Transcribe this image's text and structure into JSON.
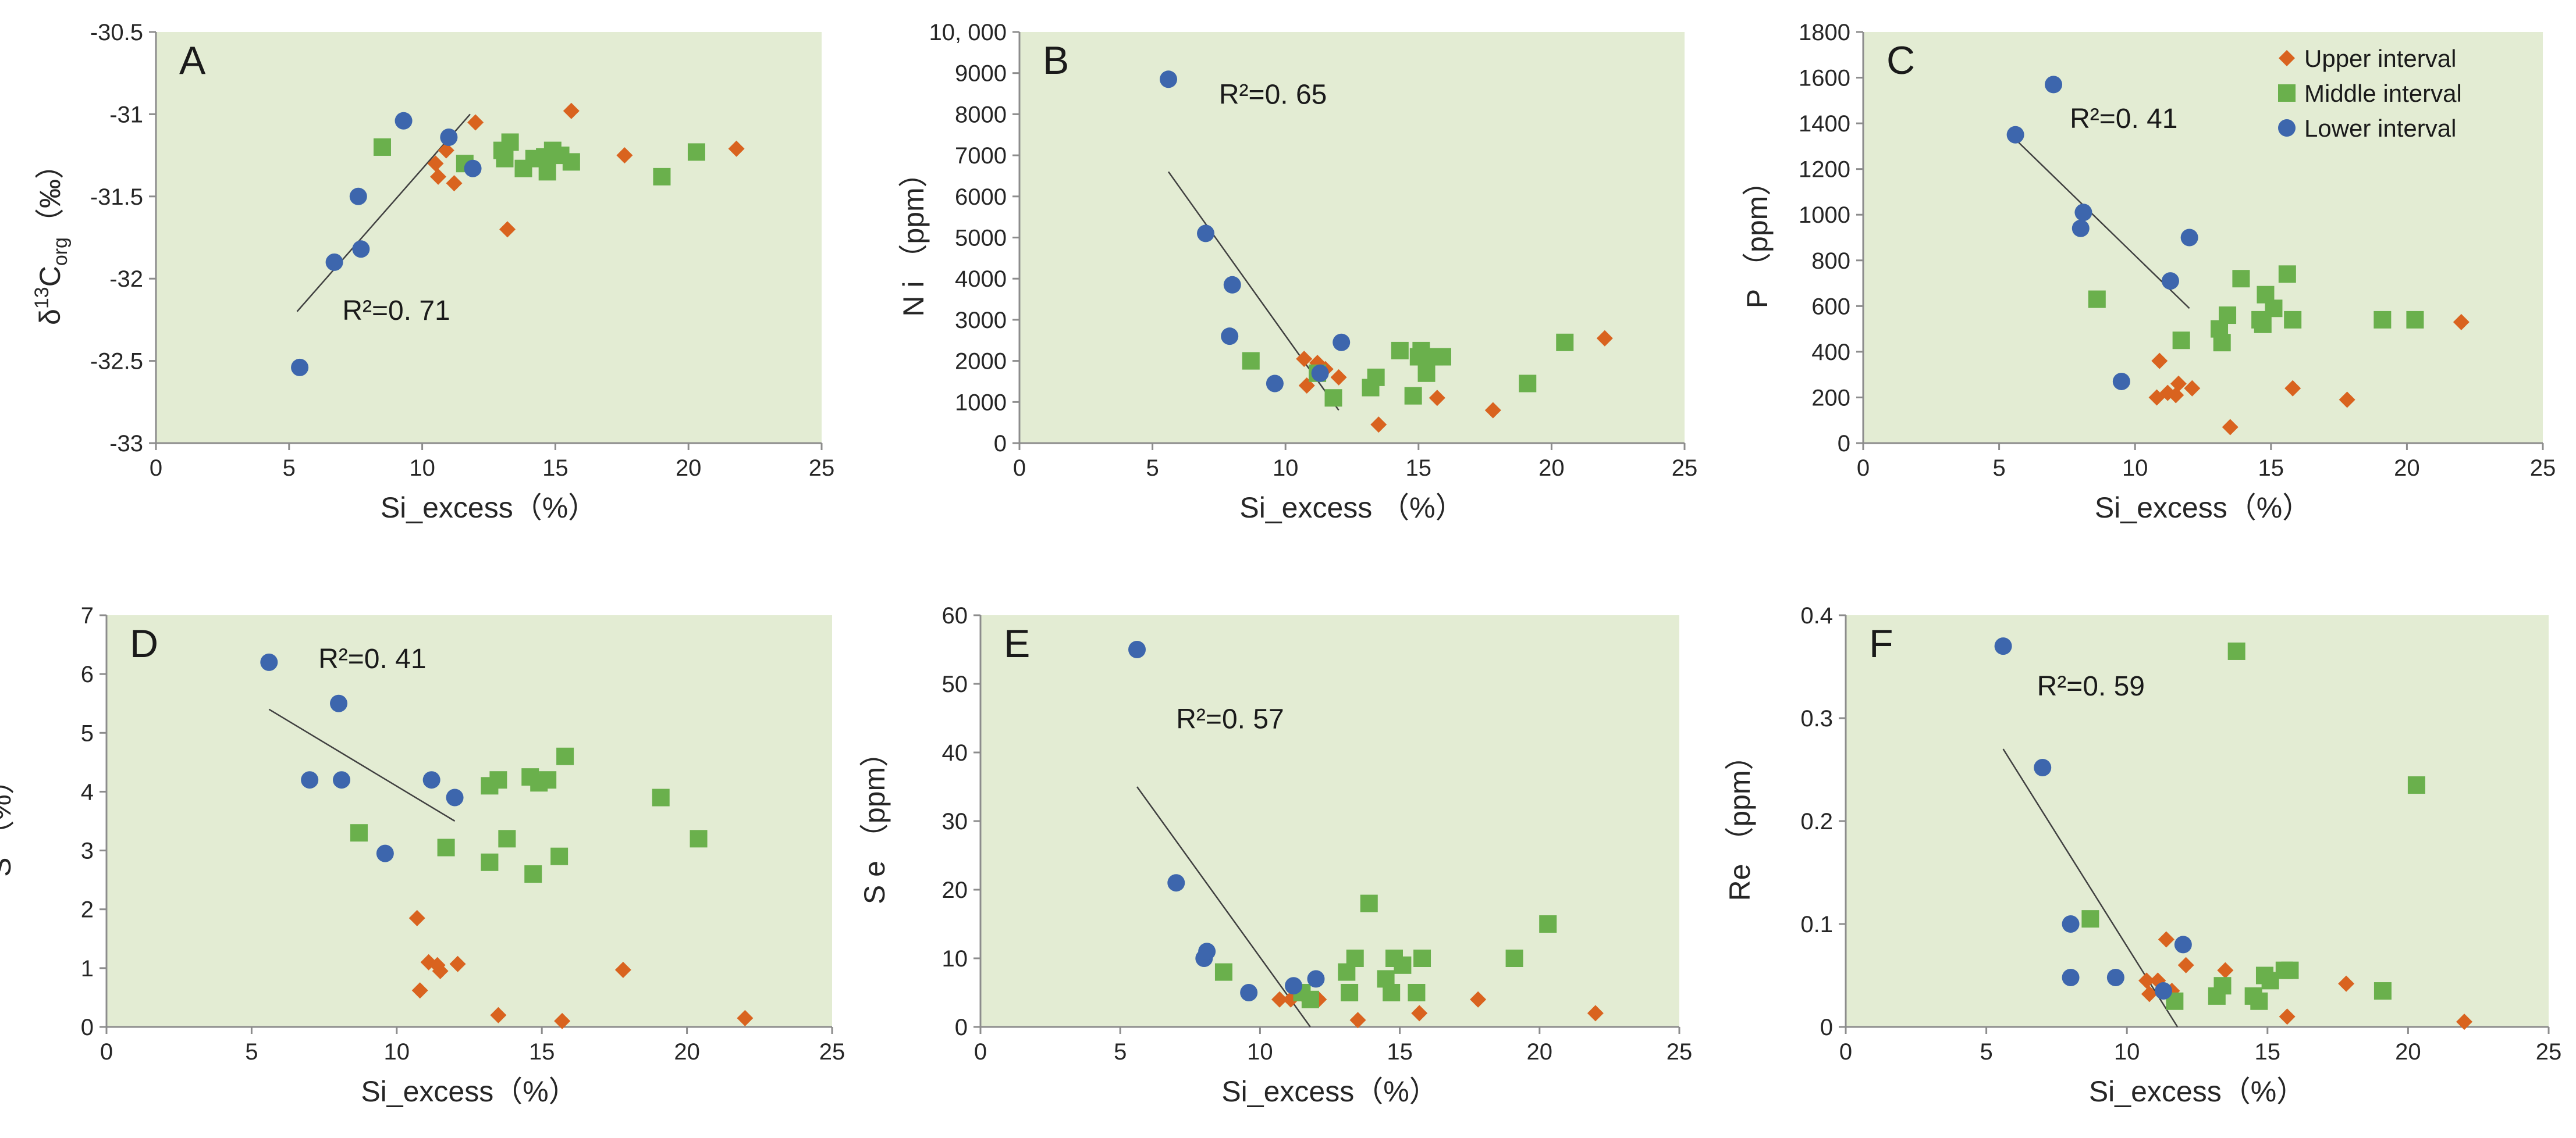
{
  "colors": {
    "plot_bg": "#e3ecd3",
    "upper": "#d9631f",
    "middle": "#6ab04c",
    "lower": "#3d66ad",
    "axis": "#8c8c8c",
    "fit": "#404040"
  },
  "legend": {
    "items": [
      {
        "name": "Upper interval",
        "marker": "diamond",
        "color": "#d9631f"
      },
      {
        "name": "Middle interval",
        "marker": "square",
        "color": "#6ab04c"
      },
      {
        "name": "Lower interval",
        "marker": "circle",
        "color": "#3d66ad"
      }
    ]
  },
  "chart_data": [
    {
      "type": "scatter",
      "letter": "A",
      "ylabel_main": "δ",
      "ylabel_sup": "13",
      "ylabel_rest": "C",
      "ylabel_sub": "org",
      "ylabel_unit": "（‰）",
      "xlabel": "Si_excess（%）",
      "xlim": [
        0,
        25
      ],
      "ylim": [
        -33,
        -30.5
      ],
      "xticks": [
        0,
        5,
        10,
        15,
        20,
        25
      ],
      "yticks": [
        -33,
        -32.5,
        -32,
        -31.5,
        -31,
        -30.5
      ],
      "ytick_labels": [
        "-33",
        "-32.5",
        "-32",
        "-31.5",
        "-31",
        "-30.5"
      ],
      "r2_text": "R²=0. 71",
      "r2_pos": [
        7,
        -32.25
      ],
      "fit_line": [
        [
          5.3,
          -32.2
        ],
        [
          11.8,
          -31
        ]
      ],
      "series": [
        {
          "name": "Upper interval",
          "points": [
            [
              10.5,
              -31.3
            ],
            [
              10.6,
              -31.38
            ],
            [
              10.9,
              -31.22
            ],
            [
              11.2,
              -31.42
            ],
            [
              12.0,
              -31.05
            ],
            [
              13.2,
              -31.7
            ],
            [
              15.6,
              -30.98
            ],
            [
              17.6,
              -31.25
            ],
            [
              21.8,
              -31.21
            ]
          ]
        },
        {
          "name": "Middle interval",
          "points": [
            [
              8.5,
              -31.2
            ],
            [
              11.6,
              -31.3
            ],
            [
              13.0,
              -31.22
            ],
            [
              13.1,
              -31.27
            ],
            [
              13.3,
              -31.17
            ],
            [
              13.8,
              -31.33
            ],
            [
              14.2,
              -31.27
            ],
            [
              14.6,
              -31.26
            ],
            [
              14.7,
              -31.35
            ],
            [
              14.9,
              -31.22
            ],
            [
              15.2,
              -31.25
            ],
            [
              15.6,
              -31.29
            ],
            [
              19.0,
              -31.38
            ],
            [
              20.3,
              -31.23
            ]
          ]
        },
        {
          "name": "Lower interval",
          "points": [
            [
              5.4,
              -32.54
            ],
            [
              6.7,
              -31.9
            ],
            [
              7.6,
              -31.5
            ],
            [
              7.7,
              -31.82
            ],
            [
              9.3,
              -31.04
            ],
            [
              11.0,
              -31.14
            ],
            [
              11.9,
              -31.33
            ]
          ]
        }
      ]
    },
    {
      "type": "scatter",
      "letter": "B",
      "ylabel": "N i （ppm）",
      "xlabel": "Si_excess （%）",
      "xlim": [
        0,
        25
      ],
      "ylim": [
        0,
        10000
      ],
      "xticks": [
        0,
        5,
        10,
        15,
        20,
        25
      ],
      "yticks": [
        0,
        1000,
        2000,
        3000,
        4000,
        5000,
        6000,
        7000,
        8000,
        9000,
        10000
      ],
      "ytick_labels": [
        "0",
        "1000",
        "2000",
        "3000",
        "4000",
        "5000",
        "6000",
        "7000",
        "8000",
        "9000",
        "10, 000"
      ],
      "r2_text": "R²=0. 65",
      "r2_pos": [
        7.5,
        8250
      ],
      "fit_line": [
        [
          5.6,
          6600
        ],
        [
          12.0,
          800
        ]
      ],
      "series": [
        {
          "name": "Upper interval",
          "points": [
            [
              10.7,
              2050
            ],
            [
              10.8,
              1400
            ],
            [
              11.2,
              1950
            ],
            [
              11.5,
              1800
            ],
            [
              12.0,
              1600
            ],
            [
              13.5,
              450
            ],
            [
              15.7,
              1100
            ],
            [
              17.8,
              800
            ],
            [
              22.0,
              2550
            ]
          ]
        },
        {
          "name": "Middle interval",
          "points": [
            [
              8.7,
              2000
            ],
            [
              11.2,
              1700
            ],
            [
              11.8,
              1100
            ],
            [
              13.2,
              1350
            ],
            [
              13.4,
              1600
            ],
            [
              14.3,
              2250
            ],
            [
              14.8,
              1150
            ],
            [
              15.0,
              2100
            ],
            [
              15.1,
              2250
            ],
            [
              15.3,
              1700
            ],
            [
              15.6,
              2100
            ],
            [
              15.9,
              2100
            ],
            [
              19.1,
              1450
            ],
            [
              20.5,
              2450
            ]
          ]
        },
        {
          "name": "Lower interval",
          "points": [
            [
              5.6,
              8850
            ],
            [
              7.0,
              5100
            ],
            [
              8.0,
              3850
            ],
            [
              7.9,
              2600
            ],
            [
              9.6,
              1450
            ],
            [
              11.3,
              1700
            ],
            [
              12.1,
              2450
            ]
          ]
        }
      ]
    },
    {
      "type": "scatter",
      "letter": "C",
      "ylabel": "P （ppm）",
      "xlabel": "Si_excess（%）",
      "xlim": [
        0,
        25
      ],
      "ylim": [
        0,
        1800
      ],
      "xticks": [
        0,
        5,
        10,
        15,
        20,
        25
      ],
      "yticks": [
        0,
        200,
        400,
        600,
        800,
        1000,
        1200,
        1400,
        1600,
        1800
      ],
      "ytick_labels": [
        "0",
        "200",
        "400",
        "600",
        "800",
        "1000",
        "1200",
        "1400",
        "1600",
        "1800"
      ],
      "r2_text": "R²=0. 41",
      "r2_pos": [
        7.6,
        1380
      ],
      "fit_line": [
        [
          5.6,
          1330
        ],
        [
          12.0,
          590
        ]
      ],
      "series": [
        {
          "name": "Upper interval",
          "points": [
            [
              10.8,
              200
            ],
            [
              10.9,
              360
            ],
            [
              11.2,
              220
            ],
            [
              11.5,
              210
            ],
            [
              11.6,
              260
            ],
            [
              12.1,
              240
            ],
            [
              13.5,
              70
            ],
            [
              15.8,
              240
            ],
            [
              17.8,
              190
            ],
            [
              22.0,
              530
            ]
          ]
        },
        {
          "name": "Middle interval",
          "points": [
            [
              8.6,
              630
            ],
            [
              11.7,
              450
            ],
            [
              13.1,
              500
            ],
            [
              13.2,
              440
            ],
            [
              13.4,
              560
            ],
            [
              13.9,
              720
            ],
            [
              14.6,
              540
            ],
            [
              14.7,
              520
            ],
            [
              14.8,
              650
            ],
            [
              15.1,
              590
            ],
            [
              15.6,
              740
            ],
            [
              15.8,
              540
            ],
            [
              19.1,
              540
            ],
            [
              20.3,
              540
            ]
          ]
        },
        {
          "name": "Lower interval",
          "points": [
            [
              5.6,
              1350
            ],
            [
              7.0,
              1570
            ],
            [
              8.0,
              940
            ],
            [
              8.1,
              1010
            ],
            [
              9.5,
              270
            ],
            [
              11.3,
              710
            ],
            [
              12.0,
              900
            ]
          ]
        }
      ]
    },
    {
      "type": "scatter",
      "letter": "D",
      "ylabel": "S （%）",
      "xlabel": "Si_excess（%）",
      "xlim": [
        0,
        25
      ],
      "ylim": [
        0,
        7
      ],
      "xticks": [
        0,
        5,
        10,
        15,
        20,
        25
      ],
      "yticks": [
        0,
        1,
        2,
        3,
        4,
        5,
        6,
        7
      ],
      "ytick_labels": [
        "0",
        "1",
        "2",
        "3",
        "4",
        "5",
        "6",
        "7"
      ],
      "r2_text": "R²=0. 41",
      "r2_pos": [
        7.3,
        6.1
      ],
      "fit_line": [
        [
          5.6,
          5.4
        ],
        [
          12.0,
          3.5
        ]
      ],
      "series": [
        {
          "name": "Upper interval",
          "points": [
            [
              10.7,
              1.85
            ],
            [
              10.8,
              0.62
            ],
            [
              11.1,
              1.1
            ],
            [
              11.4,
              1.05
            ],
            [
              11.5,
              0.95
            ],
            [
              12.1,
              1.07
            ],
            [
              13.5,
              0.2
            ],
            [
              15.7,
              0.1
            ],
            [
              17.8,
              0.97
            ],
            [
              22.0,
              0.15
            ]
          ]
        },
        {
          "name": "Middle interval",
          "points": [
            [
              8.7,
              3.3
            ],
            [
              11.7,
              3.05
            ],
            [
              13.2,
              4.1
            ],
            [
              13.2,
              2.8
            ],
            [
              13.5,
              4.2
            ],
            [
              13.8,
              3.2
            ],
            [
              14.6,
              4.25
            ],
            [
              14.7,
              2.6
            ],
            [
              14.9,
              4.15
            ],
            [
              15.2,
              4.2
            ],
            [
              15.6,
              2.9
            ],
            [
              15.8,
              4.6
            ],
            [
              19.1,
              3.9
            ],
            [
              20.4,
              3.2
            ]
          ]
        },
        {
          "name": "Lower interval",
          "points": [
            [
              5.6,
              6.2
            ],
            [
              7.0,
              4.2
            ],
            [
              8.0,
              5.5
            ],
            [
              8.1,
              4.2
            ],
            [
              9.6,
              2.95
            ],
            [
              11.2,
              4.2
            ],
            [
              12.0,
              3.9
            ]
          ]
        }
      ]
    },
    {
      "type": "scatter",
      "letter": "E",
      "ylabel": "S e （ppm）",
      "xlabel": "Si_excess（%）",
      "xlim": [
        0,
        25
      ],
      "ylim": [
        0,
        60
      ],
      "xticks": [
        0,
        5,
        10,
        15,
        20,
        25
      ],
      "yticks": [
        0,
        10,
        20,
        30,
        40,
        50,
        60
      ],
      "ytick_labels": [
        "0",
        "10",
        "20",
        "30",
        "40",
        "50",
        "60"
      ],
      "r2_text": "R²=0. 57",
      "r2_pos": [
        7.0,
        43.5
      ],
      "fit_line": [
        [
          5.6,
          35
        ],
        [
          11.8,
          0
        ]
      ],
      "series": [
        {
          "name": "Upper interval",
          "points": [
            [
              10.7,
              4
            ],
            [
              11.1,
              4
            ],
            [
              11.5,
              5
            ],
            [
              11.7,
              4
            ],
            [
              12.1,
              4
            ],
            [
              13.5,
              1
            ],
            [
              15.7,
              2
            ],
            [
              17.8,
              4
            ],
            [
              22.0,
              2
            ]
          ]
        },
        {
          "name": "Middle interval",
          "points": [
            [
              8.7,
              8
            ],
            [
              11.5,
              5
            ],
            [
              11.8,
              4
            ],
            [
              13.1,
              8
            ],
            [
              13.2,
              5
            ],
            [
              13.4,
              10
            ],
            [
              13.9,
              18
            ],
            [
              14.5,
              7
            ],
            [
              14.7,
              5
            ],
            [
              14.8,
              10
            ],
            [
              15.1,
              9
            ],
            [
              15.6,
              5
            ],
            [
              15.8,
              10
            ],
            [
              19.1,
              10
            ],
            [
              20.3,
              15
            ]
          ]
        },
        {
          "name": "Lower interval",
          "points": [
            [
              5.6,
              55
            ],
            [
              7.0,
              21
            ],
            [
              8.0,
              10
            ],
            [
              8.1,
              11
            ],
            [
              9.6,
              5
            ],
            [
              11.2,
              6
            ],
            [
              12.0,
              7
            ]
          ]
        }
      ]
    },
    {
      "type": "scatter",
      "letter": "F",
      "ylabel": "Re （ppm）",
      "xlabel": "Si_excess（%）",
      "xlim": [
        0,
        25
      ],
      "ylim": [
        0,
        0.4
      ],
      "xticks": [
        0,
        5,
        10,
        15,
        20,
        25
      ],
      "yticks": [
        0,
        0.1,
        0.2,
        0.3,
        0.4
      ],
      "ytick_labels": [
        "0",
        "0.1",
        "0.2",
        "0.3",
        "0.4"
      ],
      "r2_text": "R²=0. 59",
      "r2_pos": [
        6.8,
        0.322
      ],
      "fit_line": [
        [
          5.6,
          0.27
        ],
        [
          11.8,
          0
        ]
      ],
      "series": [
        {
          "name": "Upper interval",
          "points": [
            [
              10.7,
              0.045
            ],
            [
              10.8,
              0.032
            ],
            [
              11.1,
              0.045
            ],
            [
              11.4,
              0.085
            ],
            [
              11.6,
              0.035
            ],
            [
              12.1,
              0.06
            ],
            [
              13.5,
              0.055
            ],
            [
              15.7,
              0.01
            ],
            [
              17.8,
              0.042
            ],
            [
              22.0,
              0.005
            ]
          ]
        },
        {
          "name": "Middle interval",
          "points": [
            [
              8.7,
              0.105
            ],
            [
              11.7,
              0.025
            ],
            [
              13.2,
              0.03
            ],
            [
              13.4,
              0.04
            ],
            [
              13.9,
              0.365
            ],
            [
              14.5,
              0.03
            ],
            [
              14.7,
              0.025
            ],
            [
              14.9,
              0.05
            ],
            [
              15.1,
              0.045
            ],
            [
              15.6,
              0.055
            ],
            [
              15.8,
              0.055
            ],
            [
              19.1,
              0.035
            ],
            [
              20.3,
              0.235
            ]
          ]
        },
        {
          "name": "Lower interval",
          "points": [
            [
              5.6,
              0.37
            ],
            [
              7.0,
              0.252
            ],
            [
              8.0,
              0.1
            ],
            [
              8.0,
              0.048
            ],
            [
              9.6,
              0.048
            ],
            [
              11.3,
              0.035
            ],
            [
              12.0,
              0.08
            ]
          ]
        }
      ]
    }
  ]
}
